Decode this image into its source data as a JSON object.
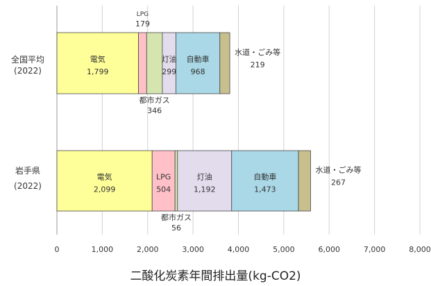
{
  "chart_data": {
    "type": "bar",
    "orientation": "horizontal",
    "stacked": true,
    "xlabel": "二酸化炭素年間排出量(kg-CO2)",
    "xlim": [
      0,
      8000
    ],
    "xticks": [
      0,
      1000,
      2000,
      3000,
      4000,
      5000,
      6000,
      7000,
      8000
    ],
    "xtick_labels": [
      "0",
      "1,000",
      "2,000",
      "3,000",
      "4,000",
      "5,000",
      "6,000",
      "7,000",
      "8,000"
    ],
    "grid": "vertical",
    "categories": [
      {
        "label": "全国平均",
        "sublabel": "(2022)"
      },
      {
        "label": "岩手県",
        "sublabel": "(2022)"
      }
    ],
    "series": [
      {
        "name": "電気",
        "color": "#ffff99",
        "values": [
          1799,
          2099
        ],
        "value_labels": [
          "1,799",
          "2,099"
        ]
      },
      {
        "name": "LPG",
        "color": "#ffc0c8",
        "values": [
          179,
          504
        ],
        "value_labels": [
          "179",
          "504"
        ]
      },
      {
        "name": "都市ガス",
        "color": "#d5e5b0",
        "values": [
          346,
          56
        ],
        "value_labels": [
          "346",
          "56"
        ]
      },
      {
        "name": "灯油",
        "color": "#e2dced",
        "values": [
          299,
          1192
        ],
        "value_labels": [
          "299",
          "1,192"
        ]
      },
      {
        "name": "自動車",
        "color": "#aad8e6",
        "values": [
          968,
          1473
        ],
        "value_labels": [
          "968",
          "1,473"
        ]
      },
      {
        "name": "水道・ごみ等",
        "color": "#c8bf8e",
        "values": [
          219,
          267
        ],
        "value_labels": [
          "219",
          "267"
        ]
      }
    ]
  }
}
